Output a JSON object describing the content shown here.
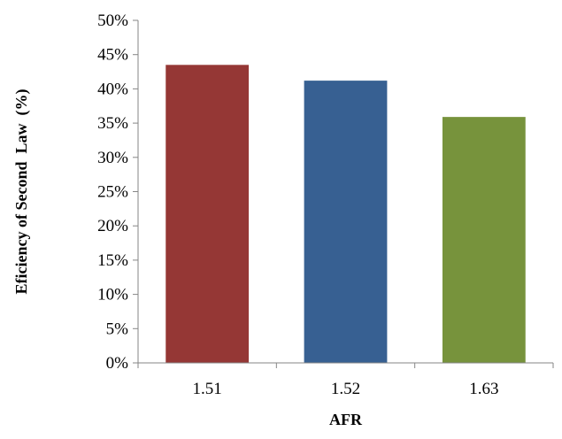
{
  "chart_data": {
    "type": "bar",
    "categories": [
      "1.51",
      "1.52",
      "1.63"
    ],
    "values": [
      43.5,
      41.2,
      35.9
    ],
    "value_format": "percent",
    "bar_colors": [
      "#953735",
      "#376092",
      "#77933C"
    ],
    "xlabel": "AFR",
    "ylabel": "Eficiency of Second  Law  (%)",
    "ylim": [
      0,
      50
    ],
    "yticks": [
      0,
      5,
      10,
      15,
      20,
      25,
      30,
      35,
      40,
      45,
      50
    ],
    "ytick_labels": [
      "0%",
      "5%",
      "10%",
      "15%",
      "20%",
      "25%",
      "30%",
      "35%",
      "40%",
      "45%",
      "50%"
    ],
    "grid": false,
    "legend": false
  }
}
